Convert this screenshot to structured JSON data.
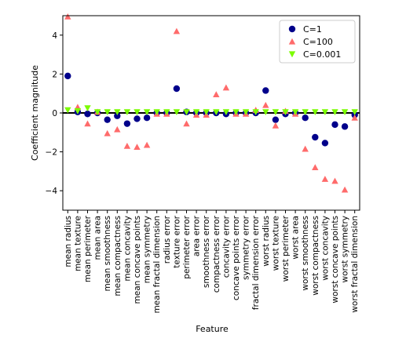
{
  "chart_data": {
    "type": "scatter",
    "xlabel": "Feature",
    "ylabel": "Coefficient magnitude",
    "ylim": [
      -5,
      5
    ],
    "yticks": [
      -4,
      -2,
      0,
      2,
      4
    ],
    "grid": false,
    "legend_position": "top-right",
    "zero_line": true,
    "categories": [
      "mean radius",
      "mean texture",
      "mean perimeter",
      "mean area",
      "mean smoothness",
      "mean compactness",
      "mean concavity",
      "mean concave points",
      "mean symmetry",
      "mean fractal dimension",
      "radius error",
      "texture error",
      "perimeter error",
      "area error",
      "smoothness error",
      "compactness error",
      "concavity error",
      "concave points error",
      "symmetry error",
      "fractal dimension error",
      "worst radius",
      "worst texture",
      "worst perimeter",
      "worst area",
      "worst smoothness",
      "worst compactness",
      "worst concavity",
      "worst concave points",
      "worst symmetry",
      "worst fractal dimension"
    ],
    "series": [
      {
        "name": "C=1",
        "marker": "circle",
        "color": "#00008b",
        "values": [
          1.9,
          0.05,
          -0.05,
          0.0,
          -0.35,
          -0.15,
          -0.55,
          -0.3,
          -0.25,
          0.0,
          0.0,
          1.25,
          0.05,
          0.0,
          0.0,
          0.0,
          -0.05,
          0.0,
          0.0,
          0.0,
          1.15,
          -0.35,
          -0.05,
          0.0,
          -0.25,
          -1.25,
          -1.55,
          -0.6,
          -0.7,
          -0.1
        ]
      },
      {
        "name": "C=100",
        "marker": "triangle-up",
        "color": "#ff6b6b",
        "values": [
          4.95,
          0.3,
          -0.55,
          0.05,
          -1.05,
          -0.85,
          -1.7,
          -1.75,
          -1.65,
          -0.05,
          -0.05,
          4.2,
          -0.55,
          -0.1,
          -0.1,
          0.95,
          1.3,
          -0.05,
          -0.05,
          0.15,
          0.4,
          -0.65,
          0.1,
          -0.05,
          -1.85,
          -2.8,
          -3.4,
          -3.5,
          -3.95,
          -0.25
        ]
      },
      {
        "name": "C=0.001",
        "marker": "triangle-down",
        "color": "#7cfc00",
        "values": [
          0.15,
          0.1,
          0.25,
          0.05,
          0.05,
          0.05,
          0.05,
          0.05,
          0.05,
          0.05,
          0.05,
          0.05,
          0.05,
          0.05,
          0.05,
          0.05,
          0.05,
          0.05,
          0.05,
          0.05,
          0.05,
          0.05,
          0.05,
          0.05,
          0.05,
          0.05,
          0.05,
          0.05,
          0.05,
          0.05
        ]
      }
    ]
  }
}
